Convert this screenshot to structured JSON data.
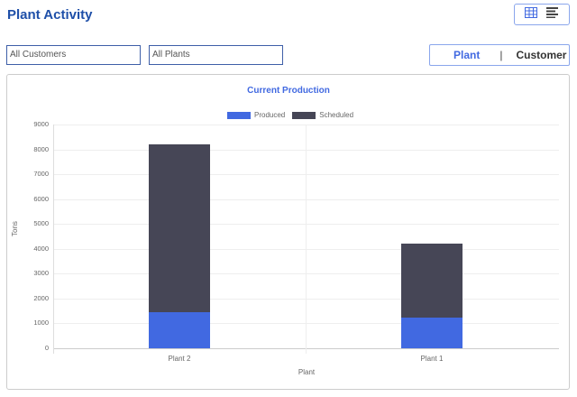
{
  "header": {
    "title": "Plant Activity"
  },
  "view_toggle": {
    "grid_icon": "grid-icon",
    "list_icon": "list-icon",
    "active": "grid"
  },
  "filters": {
    "customers": "All Customers",
    "plants": "All Plants"
  },
  "segment": {
    "option_a": "Plant",
    "separator": "|",
    "option_b": "Customer",
    "active": "Plant"
  },
  "colors": {
    "produced": "#4169e1",
    "scheduled": "#464656",
    "accent": "#4169e1"
  },
  "chart_data": {
    "type": "bar",
    "stacked": true,
    "title": "Current Production",
    "xlabel": "Plant",
    "ylabel": "Tons",
    "ylim": [
      0,
      9000
    ],
    "yticks": [
      0,
      1000,
      2000,
      3000,
      4000,
      5000,
      6000,
      7000,
      8000,
      9000
    ],
    "categories": [
      "Plant 2",
      "Plant 1"
    ],
    "series": [
      {
        "name": "Produced",
        "values": [
          1450,
          1250
        ],
        "color": "#4169e1"
      },
      {
        "name": "Scheduled",
        "values": [
          6750,
          2950
        ],
        "color": "#464656"
      }
    ],
    "legend_position": "top",
    "grid": true
  }
}
